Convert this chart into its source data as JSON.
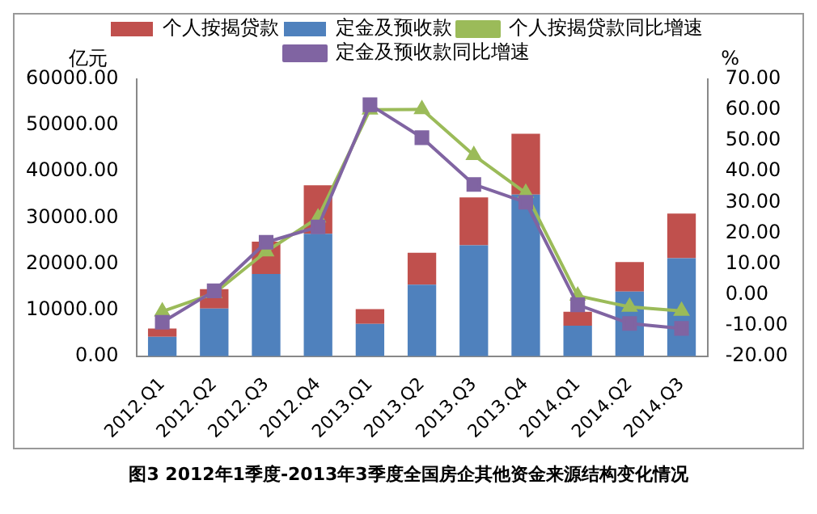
{
  "chart_data": {
    "type": "bar",
    "stacked": true,
    "categories": [
      "2012.Q1",
      "2012.Q2",
      "2012.Q3",
      "2012.Q4",
      "2013.Q1",
      "2013.Q2",
      "2013.Q3",
      "2013.Q4",
      "2014.Q1",
      "2014.Q2",
      "2014.Q3"
    ],
    "series": [
      {
        "name": "定金及预收款",
        "color": "#4f81bd",
        "values": [
          4200,
          10300,
          17800,
          26500,
          7000,
          15500,
          24000,
          35000,
          6600,
          14000,
          21200
        ]
      },
      {
        "name": "个人按揭贷款",
        "color": "#c0504d",
        "values": [
          1800,
          4200,
          7000,
          10500,
          3200,
          6900,
          10400,
          13200,
          3000,
          6400,
          9700
        ]
      },
      {
        "name": "个人按揭贷款同比增速",
        "type": "line",
        "axis": "y2",
        "marker": "triangle",
        "color": "#9bbb59",
        "values": [
          -5.5,
          0.4,
          14,
          25,
          60.1,
          60.2,
          45.3,
          33,
          -0.4,
          -4,
          -5.3
        ]
      },
      {
        "name": "定金及预收款同比增速",
        "type": "line",
        "axis": "y2",
        "marker": "square",
        "color": "#8064a2",
        "values": [
          -9,
          1.2,
          17,
          22,
          61.7,
          51,
          35.8,
          30,
          -3.3,
          -9.4,
          -11
        ]
      }
    ],
    "ylabel": "亿元",
    "y2label": "%",
    "ylim": [
      0,
      60000
    ],
    "yticks": [
      {
        "value": 0,
        "label": "0.00"
      },
      {
        "value": 10000,
        "label": "10000.00"
      },
      {
        "value": 20000,
        "label": "20000.00"
      },
      {
        "value": 30000,
        "label": "30000.00"
      },
      {
        "value": 40000,
        "label": "40000.00"
      },
      {
        "value": 50000,
        "label": "50000.00"
      },
      {
        "value": 60000,
        "label": "60000.00"
      }
    ],
    "y2lim": [
      -20,
      70
    ],
    "y2ticks": [
      {
        "value": -20,
        "label": "-20.00"
      },
      {
        "value": -10,
        "label": "-10.00"
      },
      {
        "value": 0,
        "label": "0.00"
      },
      {
        "value": 10,
        "label": "10.00"
      },
      {
        "value": 20,
        "label": "20.00"
      },
      {
        "value": 30,
        "label": "30.00"
      },
      {
        "value": 40,
        "label": "40.00"
      },
      {
        "value": 50,
        "label": "50.00"
      },
      {
        "value": 60,
        "label": "60.00"
      },
      {
        "value": 70,
        "label": "70.00"
      }
    ],
    "legend": "top",
    "grid": false,
    "annotations": [
      "图3 2012年1季度-2013年3季度全国房企其他资金来源结构变化情况"
    ]
  }
}
